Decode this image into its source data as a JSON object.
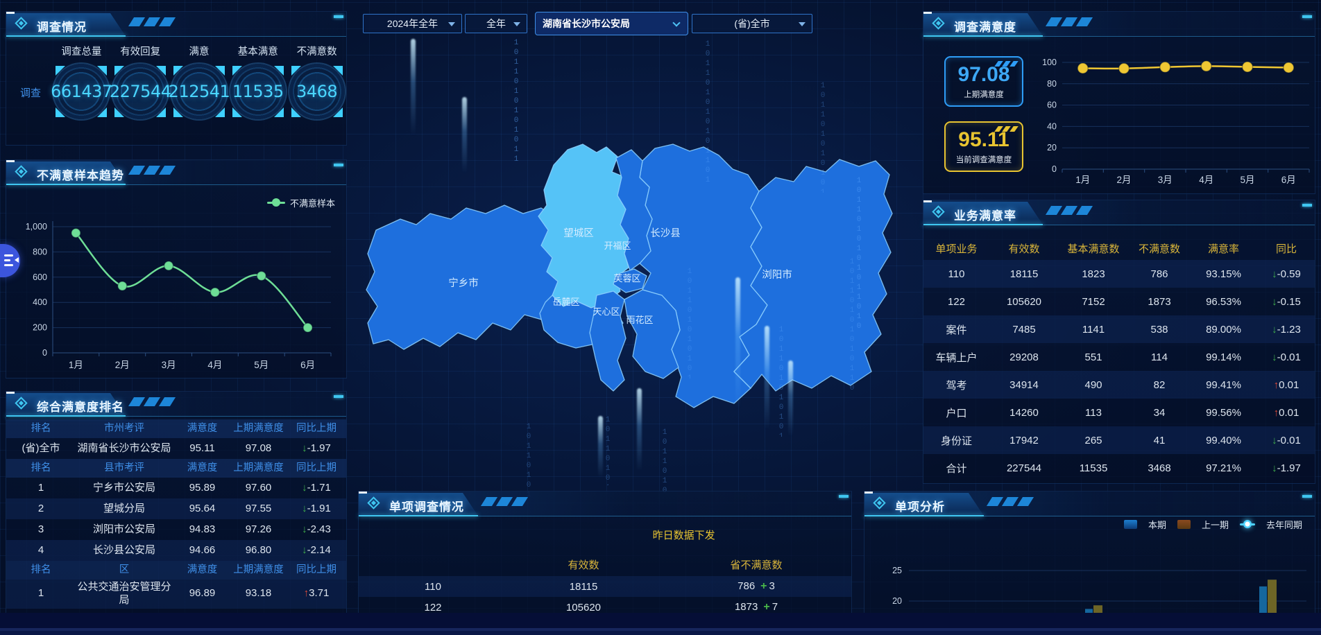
{
  "filters": {
    "year": "2024年全年",
    "period": "全年",
    "org": "湖南省长沙市公安局",
    "region": "(省)全市"
  },
  "panels": {
    "survey": {
      "title": "调查情况",
      "side_label": "调查",
      "stats": [
        {
          "label": "调查总量",
          "value": "661437"
        },
        {
          "label": "有效回复",
          "value": "227544"
        },
        {
          "label": "满意",
          "value": "212541"
        },
        {
          "label": "基本满意",
          "value": "11535"
        },
        {
          "label": "不满意数",
          "value": "3468"
        }
      ]
    },
    "trend": {
      "title": "不满意样本趋势",
      "legend": "不满意样本"
    },
    "ranking": {
      "title": "综合满意度排名",
      "sections": [
        {
          "headers": [
            "排名",
            "市州考评",
            "满意度",
            "上期满意度",
            "同比上期"
          ],
          "rows": [
            {
              "rank": "(省)全市",
              "name": "湖南省长沙市公安局",
              "score": "95.11",
              "prev": "97.08",
              "delta": "-1.97",
              "dir": "down"
            }
          ]
        },
        {
          "headers": [
            "排名",
            "县市考评",
            "满意度",
            "上期满意度",
            "同比上期"
          ],
          "rows": [
            {
              "rank": "1",
              "name": "宁乡市公安局",
              "score": "95.89",
              "prev": "97.60",
              "delta": "-1.71",
              "dir": "down"
            },
            {
              "rank": "2",
              "name": "望城分局",
              "score": "95.64",
              "prev": "97.55",
              "delta": "-1.91",
              "dir": "down"
            },
            {
              "rank": "3",
              "name": "浏阳市公安局",
              "score": "94.83",
              "prev": "97.26",
              "delta": "-2.43",
              "dir": "down"
            },
            {
              "rank": "4",
              "name": "长沙县公安局",
              "score": "94.66",
              "prev": "96.80",
              "delta": "-2.14",
              "dir": "down"
            }
          ]
        },
        {
          "headers": [
            "排名",
            "区",
            "满意度",
            "上期满意度",
            "同比上期"
          ],
          "rows": [
            {
              "rank": "1",
              "name": "公共交通治安管理分局",
              "score": "96.89",
              "prev": "93.18",
              "delta": "3.71",
              "dir": "up"
            }
          ]
        }
      ]
    },
    "satisfaction": {
      "title": "调查满意度",
      "cards": [
        {
          "value": "97.08",
          "label": "上期满意度",
          "theme": "blue"
        },
        {
          "value": "95.11",
          "label": "当前调查满意度",
          "theme": "yellow"
        }
      ]
    },
    "business": {
      "title": "业务满意率",
      "columns": [
        "单项业务",
        "有效数",
        "基本满意数",
        "不满意数",
        "满意率",
        "同比"
      ],
      "rows": [
        {
          "name": "110",
          "valid": "18115",
          "basic": "1823",
          "dissatisfied": "786",
          "rate": "93.15%",
          "delta": "-0.59",
          "dir": "down"
        },
        {
          "name": "122",
          "valid": "105620",
          "basic": "7152",
          "dissatisfied": "1873",
          "rate": "96.53%",
          "delta": "-0.15",
          "dir": "down"
        },
        {
          "name": "案件",
          "valid": "7485",
          "basic": "1141",
          "dissatisfied": "538",
          "rate": "89.00%",
          "delta": "-1.23",
          "dir": "down"
        },
        {
          "name": "车辆上户",
          "valid": "29208",
          "basic": "551",
          "dissatisfied": "114",
          "rate": "99.14%",
          "delta": "-0.01",
          "dir": "down"
        },
        {
          "name": "驾考",
          "valid": "34914",
          "basic": "490",
          "dissatisfied": "82",
          "rate": "99.41%",
          "delta": "0.01",
          "dir": "up"
        },
        {
          "name": "户口",
          "valid": "14260",
          "basic": "113",
          "dissatisfied": "34",
          "rate": "99.56%",
          "delta": "0.01",
          "dir": "up"
        },
        {
          "name": "身份证",
          "valid": "17942",
          "basic": "265",
          "dissatisfied": "41",
          "rate": "99.40%",
          "delta": "-0.01",
          "dir": "down"
        },
        {
          "name": "合计",
          "valid": "227544",
          "basic": "11535",
          "dissatisfied": "3468",
          "rate": "97.21%",
          "delta": "-1.97",
          "dir": "down"
        }
      ]
    },
    "single": {
      "title": "单项调查情况",
      "subtitle": "昨日数据下发",
      "columns": [
        "有效数",
        "省不满意数"
      ],
      "rows": [
        {
          "name": "110",
          "valid": "18115",
          "dissatisfied": "786",
          "delta": "3"
        },
        {
          "name": "122",
          "valid": "105620",
          "dissatisfied": "1873",
          "delta": "7"
        }
      ]
    },
    "analysis": {
      "title": "单项分析",
      "legend": [
        "本期",
        "上一期",
        "去年同期"
      ]
    }
  },
  "map": {
    "highlight": "望城区",
    "regions": [
      "宁乡市",
      "望城区",
      "长沙县",
      "浏阳市",
      "岳麓区",
      "开福区",
      "芙蓉区",
      "天心区",
      "雨花区"
    ]
  },
  "decorations": {
    "binary": "10110101010110101101010101101011"
  },
  "chart_data": [
    {
      "id": "trend",
      "type": "line",
      "title": "不满意样本趋势",
      "categories": [
        "1月",
        "2月",
        "3月",
        "4月",
        "5月",
        "6月"
      ],
      "series": [
        {
          "name": "不满意样本",
          "values": [
            950,
            530,
            690,
            480,
            610,
            200
          ]
        }
      ],
      "ylim": [
        0,
        1000
      ],
      "yticks": [
        0,
        200,
        400,
        600,
        800,
        1000
      ],
      "grid": true,
      "legend_position": "top-right",
      "color": "#6ede96"
    },
    {
      "id": "satisfaction",
      "type": "line",
      "title": "调查满意度",
      "categories": [
        "1月",
        "2月",
        "3月",
        "4月",
        "5月",
        "6月"
      ],
      "series": [
        {
          "name": "调查满意度",
          "values": [
            94.5,
            94.3,
            95.6,
            96.5,
            95.8,
            95.11
          ]
        }
      ],
      "ylim": [
        0,
        100
      ],
      "yticks": [
        0,
        20,
        40,
        60,
        80,
        100
      ],
      "grid": true,
      "color": "#efc733"
    },
    {
      "id": "analysis",
      "type": "bar",
      "title": "单项分析",
      "categories": [
        "",
        ""
      ],
      "series": [
        {
          "name": "本期",
          "values": [
            18.7,
            22.4
          ],
          "color": "#15679e"
        },
        {
          "name": "上一期",
          "values": [
            19.3,
            23.5
          ],
          "color": "#6d6526"
        },
        {
          "name": "去年同期",
          "values": [],
          "color": "#4dd2ff"
        }
      ],
      "yticks": [
        20,
        25
      ],
      "clipped_bottom": true
    }
  ],
  "colors": {
    "accent_cyan": "#3fc6f0",
    "number_cyan": "#4ad6ff",
    "header_blue": "#3f8fe8",
    "header_yellow": "#d9b53a",
    "line_green": "#6ede96",
    "line_yellow": "#efc733",
    "up_red": "#e04b3a",
    "down_green": "#3fae4c",
    "map_base": "#1e6fdd",
    "map_highlight": "#55c3f7",
    "bar_current": "#15679e",
    "bar_previous": "#6d6526",
    "legend_prev_swatch": "#6d3b1d"
  }
}
